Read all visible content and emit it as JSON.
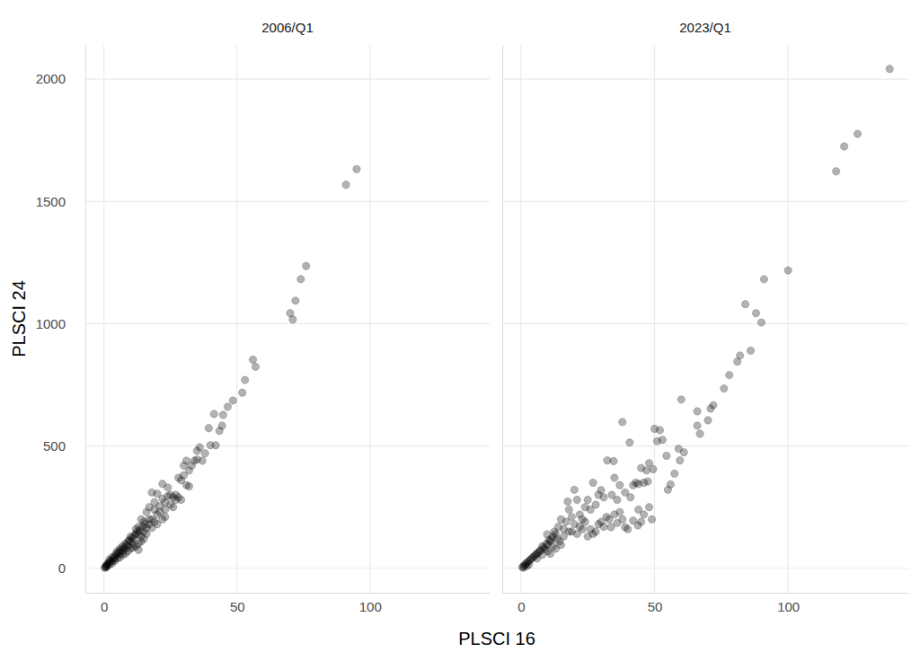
{
  "chart_data": {
    "type": "scatter",
    "x_label": "PLSCI 16",
    "y_label": "PLSCI 24",
    "xlim": [
      -7,
      145
    ],
    "ylim": [
      -100,
      2140
    ],
    "xticks": [
      0,
      50,
      100
    ],
    "yticks": [
      0,
      500,
      1000,
      1500,
      2000
    ],
    "grid": true,
    "series": [
      {
        "name": "2006/Q1",
        "color": "#000000",
        "marker": "circle",
        "x": [
          95,
          91,
          76,
          74,
          72,
          70,
          71,
          56,
          57,
          53,
          52,
          48.5,
          46.5,
          44.8,
          41.4,
          44.4,
          43.4,
          39.4,
          40,
          42,
          38,
          36,
          35,
          35,
          37,
          34,
          33,
          31,
          30,
          32,
          30,
          29,
          31,
          32,
          28,
          27,
          26,
          25,
          24,
          23,
          22,
          20,
          18,
          17,
          19,
          21,
          22,
          20,
          18,
          16,
          15,
          14,
          13,
          12,
          16,
          15,
          14,
          13,
          12,
          11,
          10,
          11,
          10,
          9,
          9,
          8,
          8,
          7,
          7,
          6,
          6,
          5,
          5,
          4,
          4,
          3,
          3,
          2,
          2,
          1,
          1,
          0.5,
          1.5,
          2.5,
          3.5,
          4.5,
          5.5,
          6.5,
          7.5,
          8.5,
          9.5,
          10.5,
          11.5,
          12.5,
          13.5,
          14.5,
          15.5,
          17,
          19,
          21,
          23,
          24,
          25,
          26,
          27,
          22,
          28,
          29,
          18,
          16,
          12,
          14,
          10,
          8,
          6,
          3,
          2,
          1,
          0.3,
          0.8,
          4,
          5,
          7,
          9,
          11,
          13,
          17,
          19,
          20,
          23,
          15,
          13
        ],
        "values": [
          1632,
          1568,
          1236,
          1182,
          1094,
          1043,
          1017,
          853,
          824,
          770,
          718,
          686,
          660,
          627,
          631,
          583,
          562,
          573,
          503,
          503,
          470,
          495,
          480,
          445,
          440,
          440,
          420,
          440,
          420,
          400,
          380,
          360,
          340,
          335,
          370,
          300,
          290,
          300,
          295,
          270,
          285,
          305,
          310,
          250,
          240,
          255,
          200,
          220,
          200,
          230,
          190,
          200,
          170,
          160,
          165,
          150,
          130,
          140,
          140,
          120,
          130,
          100,
          110,
          110,
          90,
          100,
          80,
          90,
          70,
          80,
          60,
          70,
          55,
          50,
          40,
          45,
          30,
          25,
          35,
          15,
          10,
          5,
          20,
          30,
          40,
          60,
          65,
          75,
          85,
          95,
          115,
          125,
          135,
          150,
          155,
          170,
          180,
          200,
          270,
          230,
          240,
          330,
          260,
          250,
          280,
          345,
          290,
          280,
          165,
          140,
          90,
          110,
          80,
          60,
          45,
          20,
          15,
          5,
          2,
          8,
          30,
          40,
          55,
          70,
          85,
          100,
          180,
          190,
          180,
          210,
          120,
          75
        ]
      },
      {
        "name": "2023/Q1",
        "color": "#000000",
        "marker": "circle",
        "x": [
          138,
          126,
          121,
          118,
          100,
          91,
          88,
          90,
          84,
          86,
          82,
          81,
          78,
          76,
          72,
          71,
          70,
          67,
          66,
          66,
          60,
          61,
          59.5,
          57.5,
          56,
          55,
          59,
          54.5,
          52,
          50,
          51,
          53,
          49.5,
          47.5,
          48,
          47,
          45,
          46,
          43,
          44,
          42,
          41,
          44,
          46,
          48,
          49,
          45,
          43.8,
          40,
          39,
          42,
          38,
          36,
          37,
          35,
          33.7,
          33,
          32,
          30,
          31,
          28,
          29,
          27,
          26,
          25,
          38,
          40.7,
          34.7,
          32.3,
          35,
          37,
          39,
          34,
          36,
          30,
          31,
          28,
          27,
          29,
          26,
          25,
          24,
          22,
          20,
          21,
          17.5,
          18,
          19,
          23,
          22,
          20,
          18,
          16,
          15,
          14,
          13,
          12,
          11,
          9.8,
          10,
          9,
          8,
          7,
          6,
          5,
          4,
          3,
          2,
          1,
          0.5,
          1.5,
          2.5,
          3.5,
          4.5,
          5.5,
          6.5,
          7.5,
          8.5,
          9.5,
          10.5,
          11.5,
          12.5,
          13.5,
          14.5,
          16,
          17,
          19,
          21,
          23,
          24,
          6,
          8,
          10,
          12,
          3,
          1,
          2,
          15,
          13,
          11
        ],
        "values": [
          2042,
          1776,
          1725,
          1623,
          1218,
          1182,
          1043,
          1005,
          1080,
          890,
          870,
          845,
          790,
          735,
          667,
          653,
          605,
          550,
          583,
          642,
          690,
          474,
          441,
          387,
          343,
          321,
          489,
          460,
          565,
          570,
          520,
          525,
          405,
          355,
          430,
          400,
          410,
          350,
          350,
          345,
          340,
          290,
          240,
          220,
          250,
          200,
          190,
          175,
          160,
          168,
          195,
          200,
          185,
          230,
          220,
          168,
          200,
          210,
          190,
          170,
          150,
          180,
          140,
          160,
          130,
          598,
          514,
          438,
          441,
          370,
          340,
          310,
          300,
          280,
          320,
          290,
          260,
          350,
          300,
          240,
          280,
          250,
          220,
          321,
          280,
          273,
          240,
          210,
          200,
          170,
          180,
          150,
          160,
          200,
          170,
          140,
          130,
          110,
          139,
          95,
          80,
          90,
          70,
          60,
          50,
          40,
          30,
          20,
          10,
          4,
          15,
          25,
          35,
          45,
          55,
          65,
          75,
          85,
          100,
          115,
          120,
          150,
          120,
          110,
          130,
          190,
          150,
          140,
          160,
          190,
          40,
          55,
          70,
          90,
          15,
          3,
          8,
          95,
          80,
          60
        ]
      }
    ]
  }
}
